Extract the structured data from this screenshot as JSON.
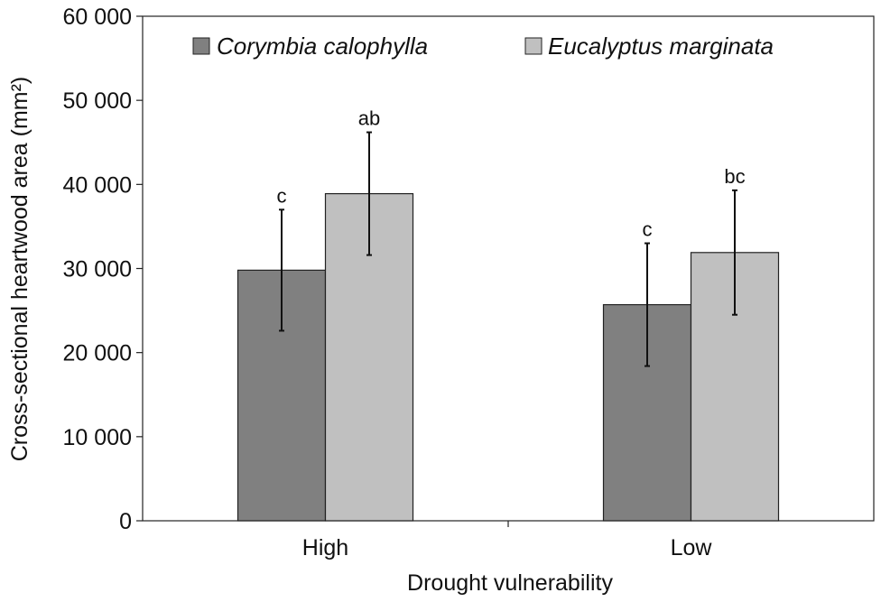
{
  "chart_data": {
    "type": "bar",
    "title": "",
    "xlabel": "Drought vulnerability",
    "ylabel": "Cross-sectional heartwood area (mm²)",
    "ylim": [
      0,
      60000
    ],
    "y_ticks": [
      0,
      10000,
      20000,
      30000,
      40000,
      50000,
      60000
    ],
    "y_tick_labels": [
      "0",
      "10 000",
      "20 000",
      "30 000",
      "40 000",
      "50 000",
      "60 000"
    ],
    "categories": [
      "High",
      "Low"
    ],
    "series": [
      {
        "name": "Corymbia calophylla",
        "color": "#808080",
        "values": [
          29800,
          25700
        ],
        "errors": [
          7200,
          7300
        ],
        "labels": [
          "c",
          "c"
        ]
      },
      {
        "name": "Eucalyptus marginata",
        "color": "#c0c0c0",
        "values": [
          38900,
          31900
        ],
        "errors": [
          7300,
          7400
        ],
        "labels": [
          "ab",
          "bc"
        ]
      }
    ],
    "legend_position": "top",
    "grid": false
  }
}
